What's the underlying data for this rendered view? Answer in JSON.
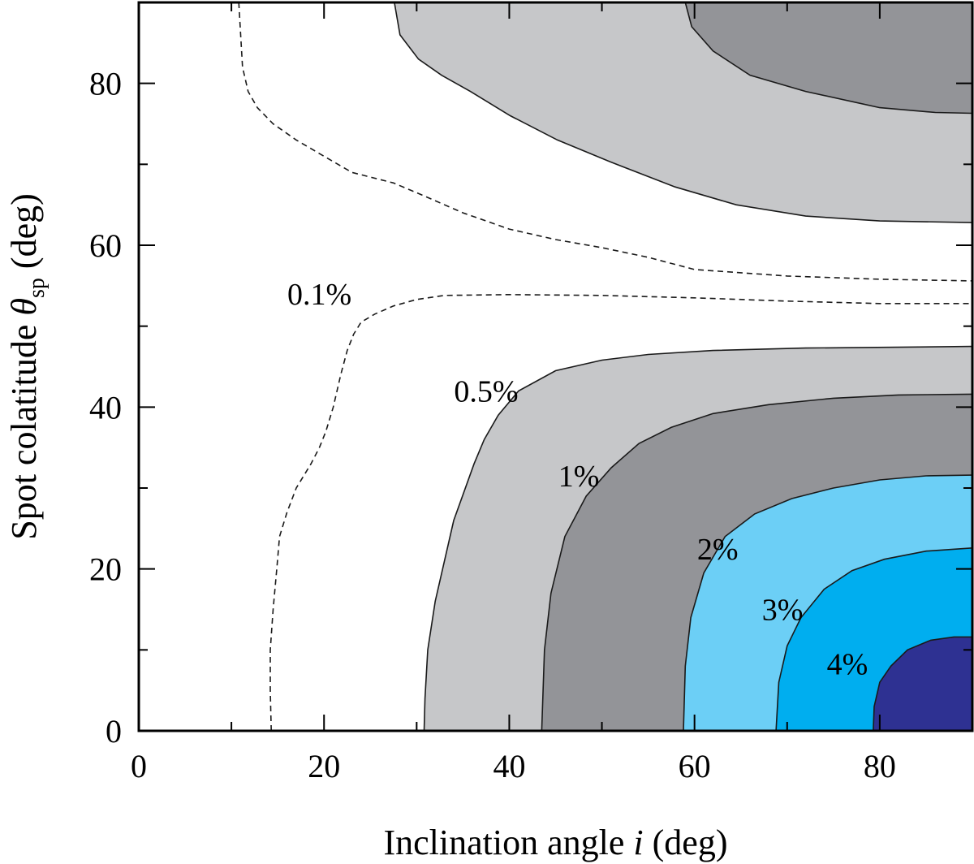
{
  "chart_data": {
    "type": "contour",
    "title": "",
    "xlabel": {
      "main": "Inclination angle ",
      "var": "i",
      "unit": " (deg)"
    },
    "ylabel": {
      "main": "Spot colatitude ",
      "var": "θ",
      "sub": "sp",
      "unit": " (deg)"
    },
    "xlim": [
      0,
      90
    ],
    "ylim": [
      0,
      90
    ],
    "x_major_ticks": [
      0,
      20,
      40,
      60,
      80
    ],
    "x_minor_ticks": [
      10,
      30,
      50,
      70,
      90
    ],
    "y_major_ticks": [
      0,
      20,
      40,
      60,
      80
    ],
    "y_minor_ticks": [
      10,
      30,
      50,
      70,
      90
    ],
    "x_tick_labels": [
      "0",
      "20",
      "40",
      "60",
      "80"
    ],
    "y_tick_labels": [
      "0",
      "20",
      "40",
      "60",
      "80"
    ],
    "colors": {
      "level_0_5": "#c6c7c9",
      "level_1": "#939498",
      "level_2": "#6ccff6",
      "level_3": "#00aeef",
      "level_4": "#2e3192",
      "background": "#ffffff"
    },
    "contour_levels": [
      "0.1%",
      "0.5%",
      "1%",
      "2%",
      "3%",
      "4%"
    ],
    "regions": [
      {
        "name": "upper-0.5-region",
        "level": "0.5%",
        "color_key": "level_0_5",
        "points": [
          [
            27.6,
            90
          ],
          [
            28.2,
            86
          ],
          [
            30.2,
            83
          ],
          [
            32.7,
            81
          ],
          [
            35.8,
            79
          ],
          [
            40.1,
            76
          ],
          [
            45.2,
            73
          ],
          [
            50.9,
            70.3
          ],
          [
            57.9,
            67.2
          ],
          [
            64.5,
            65
          ],
          [
            72,
            63.6
          ],
          [
            80,
            63
          ],
          [
            90,
            62.8
          ],
          [
            90,
            90
          ]
        ]
      },
      {
        "name": "upper-1-region",
        "level": "1%",
        "color_key": "level_1",
        "points": [
          [
            59,
            90
          ],
          [
            59.7,
            87
          ],
          [
            62,
            84
          ],
          [
            66,
            81
          ],
          [
            72,
            79
          ],
          [
            80,
            77
          ],
          [
            86,
            76.4
          ],
          [
            90,
            76.3
          ],
          [
            90,
            90
          ]
        ]
      },
      {
        "name": "lower-0.5-region",
        "level": "0.5%",
        "color_key": "level_0_5",
        "points": [
          [
            30.8,
            0
          ],
          [
            30.9,
            4
          ],
          [
            31.2,
            10
          ],
          [
            32,
            16
          ],
          [
            34,
            26
          ],
          [
            36.2,
            33
          ],
          [
            37.3,
            36
          ],
          [
            38.8,
            39
          ],
          [
            41,
            42
          ],
          [
            45,
            44.5
          ],
          [
            50,
            45.8
          ],
          [
            55,
            46.5
          ],
          [
            62,
            47
          ],
          [
            72,
            47.3
          ],
          [
            82,
            47.4
          ],
          [
            90,
            47.5
          ],
          [
            90,
            0
          ]
        ]
      },
      {
        "name": "lower-1-region",
        "level": "1%",
        "color_key": "level_1",
        "points": [
          [
            43.5,
            0
          ],
          [
            43.8,
            10
          ],
          [
            44.5,
            17
          ],
          [
            46,
            24
          ],
          [
            48.3,
            29
          ],
          [
            51,
            32.5
          ],
          [
            54,
            35.5
          ],
          [
            57.5,
            37.5
          ],
          [
            62,
            39.2
          ],
          [
            68,
            40.3
          ],
          [
            75,
            41.1
          ],
          [
            82,
            41.5
          ],
          [
            90,
            41.6
          ],
          [
            90,
            0
          ]
        ]
      },
      {
        "name": "lower-2-region",
        "level": "2%",
        "color_key": "level_2",
        "points": [
          [
            58.8,
            0
          ],
          [
            59,
            8
          ],
          [
            59.6,
            14
          ],
          [
            61,
            19.5
          ],
          [
            63.3,
            24
          ],
          [
            66.5,
            26.8
          ],
          [
            70.5,
            28.7
          ],
          [
            75,
            30
          ],
          [
            80,
            31
          ],
          [
            85,
            31.5
          ],
          [
            90,
            31.6
          ],
          [
            90,
            0
          ]
        ]
      },
      {
        "name": "lower-3-region",
        "level": "3%",
        "color_key": "level_3",
        "points": [
          [
            68.8,
            0
          ],
          [
            69.1,
            6
          ],
          [
            70,
            10.5
          ],
          [
            71.5,
            14
          ],
          [
            74,
            17.5
          ],
          [
            77,
            19.8
          ],
          [
            80.5,
            21.2
          ],
          [
            85,
            22.2
          ],
          [
            90,
            22.6
          ],
          [
            90,
            0
          ]
        ]
      },
      {
        "name": "lower-4-region",
        "level": "4%",
        "color_key": "level_4",
        "points": [
          [
            79.3,
            0
          ],
          [
            79.4,
            3
          ],
          [
            80,
            6
          ],
          [
            81.2,
            8
          ],
          [
            83,
            10
          ],
          [
            85.5,
            11.2
          ],
          [
            88,
            11.6
          ],
          [
            90,
            11.6
          ],
          [
            90,
            0
          ]
        ]
      }
    ],
    "dashed_contours": [
      {
        "name": "dashed-upper-0.1",
        "level": "0.1%",
        "points": [
          [
            10.8,
            90
          ],
          [
            11,
            86
          ],
          [
            11.2,
            82
          ],
          [
            11.8,
            79
          ],
          [
            12.8,
            77
          ],
          [
            14.5,
            75
          ],
          [
            17,
            73
          ],
          [
            20,
            71
          ],
          [
            23,
            69
          ],
          [
            27.5,
            67.7
          ],
          [
            31,
            66
          ],
          [
            35,
            64
          ],
          [
            40,
            62
          ],
          [
            45,
            60.7
          ],
          [
            50,
            59.7
          ],
          [
            55,
            58.5
          ],
          [
            60,
            57
          ],
          [
            70,
            56.2
          ],
          [
            80,
            55.8
          ],
          [
            90,
            55.6
          ]
        ]
      },
      {
        "name": "dashed-lower-0.1",
        "level": "0.1%",
        "points": [
          [
            14.3,
            0
          ],
          [
            14.2,
            5
          ],
          [
            14.2,
            10
          ],
          [
            14.5,
            15
          ],
          [
            14.9,
            20
          ],
          [
            15.2,
            24
          ],
          [
            16,
            27
          ],
          [
            17,
            30
          ],
          [
            18.6,
            33
          ],
          [
            19.5,
            35
          ],
          [
            20.2,
            37
          ],
          [
            21,
            40
          ],
          [
            21.8,
            44
          ],
          [
            22.5,
            47
          ],
          [
            23.2,
            49
          ],
          [
            24,
            50.5
          ],
          [
            25.5,
            51.5
          ],
          [
            27.5,
            52.5
          ],
          [
            30,
            53.3
          ],
          [
            33,
            53.8
          ],
          [
            40,
            53.9
          ],
          [
            50,
            53.8
          ],
          [
            60,
            53.5
          ],
          [
            70,
            53.1
          ],
          [
            80,
            52.8
          ],
          [
            90,
            52.8
          ]
        ]
      }
    ],
    "line_contours": [
      {
        "name": "line-upper-0.5",
        "level": "0.5%",
        "region_index": 0
      },
      {
        "name": "line-upper-1",
        "level": "1%",
        "region_index": 1
      },
      {
        "name": "line-lower-0.5",
        "level": "0.5%",
        "region_index": 2
      },
      {
        "name": "line-lower-1",
        "level": "1%",
        "region_index": 3
      },
      {
        "name": "line-lower-2",
        "level": "2%",
        "region_index": 4
      },
      {
        "name": "line-lower-3",
        "level": "3%",
        "region_index": 5
      },
      {
        "name": "line-lower-4",
        "level": "4%",
        "region_index": 6
      }
    ],
    "annotations": [
      {
        "text": "0.1%",
        "x": 19.5,
        "y": 54,
        "name": "label-0.1"
      },
      {
        "text": "0.5%",
        "x": 37.5,
        "y": 42,
        "name": "label-0.5"
      },
      {
        "text": "1%",
        "x": 47.5,
        "y": 31.5,
        "name": "label-1"
      },
      {
        "text": "2%",
        "x": 62.5,
        "y": 22.5,
        "name": "label-2"
      },
      {
        "text": "3%",
        "x": 69.5,
        "y": 15,
        "name": "label-3"
      },
      {
        "text": "4%",
        "x": 76.5,
        "y": 8.3,
        "name": "label-4"
      }
    ]
  }
}
